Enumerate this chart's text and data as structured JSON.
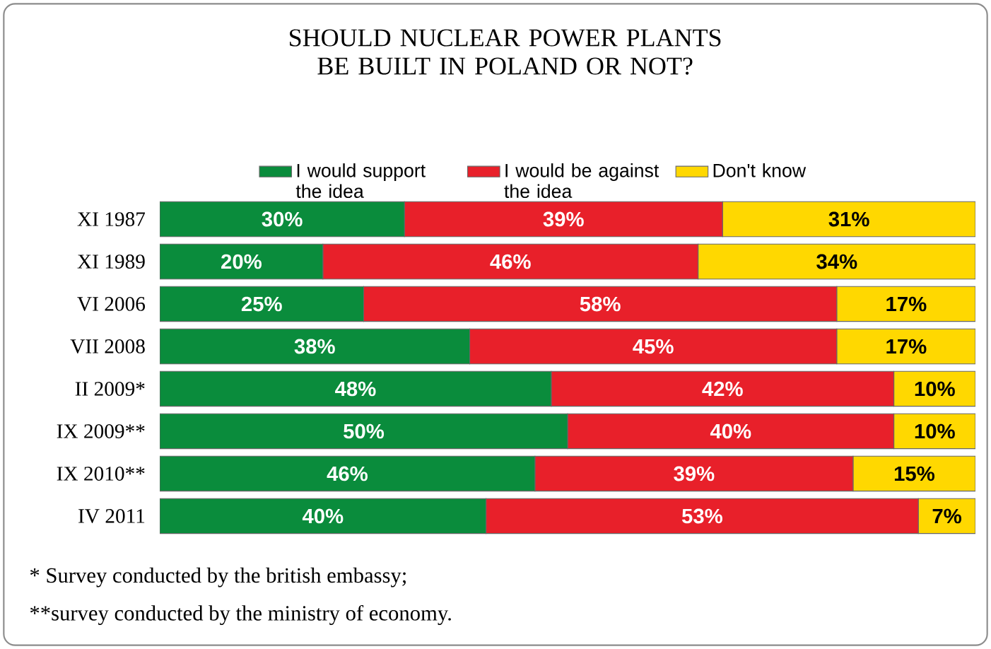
{
  "chart_data": {
    "type": "bar",
    "orientation": "horizontal",
    "stacked": true,
    "title": "SHOULD NUCLEAR POWER PLANTS BE BUILT IN POLAND OR NOT?",
    "categories": [
      "XI 1987",
      "XI 1989",
      "VI 2006",
      "VII 2008",
      "II 2009*",
      "IX 2009**",
      "IX 2010**",
      "IV 2011"
    ],
    "series": [
      {
        "name": "I would support the idea",
        "color": "#0a8c3c",
        "values": [
          30,
          20,
          25,
          38,
          48,
          50,
          46,
          40
        ],
        "value_labels": [
          "30%",
          "20%",
          "25%",
          "38%",
          "48%",
          "50%",
          "46%",
          "40%"
        ]
      },
      {
        "name": "I would be against the idea",
        "color": "#e8202a",
        "values": [
          39,
          46,
          58,
          45,
          42,
          40,
          39,
          53
        ],
        "value_labels": [
          "39%",
          "46%",
          "58%",
          "45%",
          "42%",
          "40%",
          "39%",
          "53%"
        ]
      },
      {
        "name": "Don't know",
        "color": "#ffd800",
        "values": [
          31,
          34,
          17,
          17,
          10,
          10,
          15,
          7
        ],
        "value_labels": [
          "31%",
          "34%",
          "17%",
          "17%",
          "10%",
          "10%",
          "15%",
          "7%"
        ]
      }
    ],
    "xlim": [
      0,
      100
    ],
    "tick_labels": "y",
    "legend": "top",
    "annotations": [
      "* Survey conducted by the british embassy;",
      "**survey conducted by the ministry of economy."
    ]
  }
}
